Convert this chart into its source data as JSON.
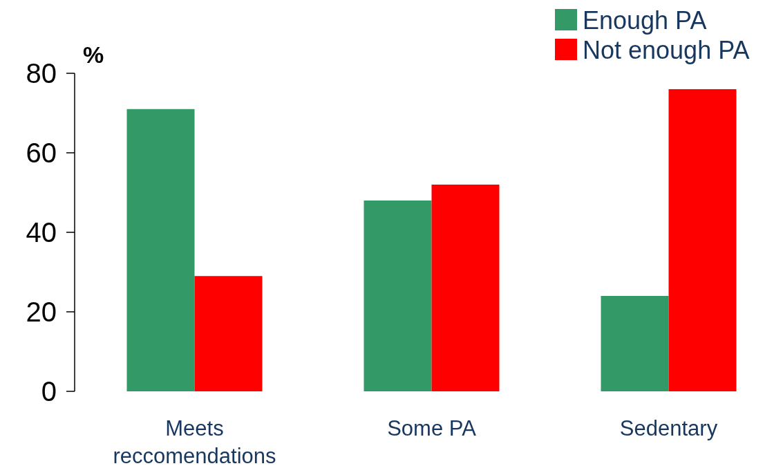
{
  "chart_data": {
    "type": "bar",
    "ylabel": "%",
    "categories": [
      "Meets reccomendations",
      "Some PA",
      "Sedentary"
    ],
    "series": [
      {
        "name": "Enough PA",
        "color": "#339966",
        "values": [
          71,
          48,
          24
        ]
      },
      {
        "name": "Not enough PA",
        "color": "#ff0000",
        "values": [
          29,
          52,
          76
        ]
      }
    ],
    "ylim": [
      0,
      80
    ],
    "yticks": [
      0,
      20,
      40,
      60,
      80
    ],
    "grid": false,
    "legend": "top right"
  }
}
